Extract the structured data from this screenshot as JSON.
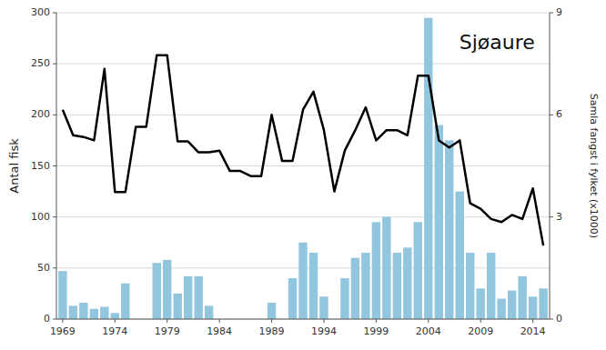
{
  "chart_data": {
    "type": "bar",
    "title": "Sjøaure",
    "y_label": "Antal fisk",
    "y2_label": "Samla fangst i fylket (x1000)",
    "x": [
      1969,
      1970,
      1971,
      1972,
      1973,
      1974,
      1975,
      1976,
      1977,
      1978,
      1979,
      1980,
      1981,
      1982,
      1983,
      1984,
      1985,
      1986,
      1987,
      1988,
      1989,
      1990,
      1991,
      1992,
      1993,
      1994,
      1995,
      1996,
      1997,
      1998,
      1999,
      2000,
      2001,
      2002,
      2003,
      2004,
      2005,
      2006,
      2007,
      2008,
      2009,
      2010,
      2011,
      2012,
      2013,
      2014,
      2015
    ],
    "series": [
      {
        "type": "bar",
        "color": "#92C5DE",
        "values": [
          47,
          13,
          16,
          10,
          12,
          6,
          35,
          0,
          0,
          55,
          58,
          25,
          42,
          42,
          13,
          0,
          0,
          0,
          0,
          0,
          16,
          0,
          40,
          75,
          65,
          22,
          0,
          40,
          60,
          65,
          95,
          100,
          65,
          70,
          95,
          295,
          190,
          175,
          125,
          65,
          30,
          65,
          20,
          28,
          42,
          22,
          30
        ]
      },
      {
        "type": "line",
        "axis": "y2",
        "color": "#000000",
        "values": [
          6.15,
          5.4,
          5.35,
          5.25,
          7.35,
          3.73,
          3.73,
          5.65,
          5.65,
          7.75,
          7.75,
          5.22,
          5.22,
          4.9,
          4.9,
          4.95,
          4.35,
          4.35,
          4.2,
          4.2,
          6.0,
          4.65,
          4.65,
          6.15,
          6.68,
          5.55,
          3.75,
          4.95,
          5.55,
          6.22,
          5.25,
          5.55,
          5.55,
          5.4,
          7.15,
          7.15,
          5.25,
          5.04,
          5.25,
          3.4,
          3.24,
          2.94,
          2.85,
          3.06,
          2.94,
          3.84,
          2.16
        ]
      }
    ],
    "xlim": [
      1968.4,
      2015.6
    ],
    "xticks": [
      1969,
      1974,
      1979,
      1984,
      1989,
      1994,
      1999,
      2004,
      2009,
      2014
    ],
    "ylim": [
      0,
      300
    ],
    "yticks": [
      0,
      50,
      100,
      150,
      200,
      250,
      300
    ],
    "y2lim": [
      0,
      9
    ],
    "y2ticks": [
      0,
      3,
      6,
      9
    ],
    "grid": true
  }
}
